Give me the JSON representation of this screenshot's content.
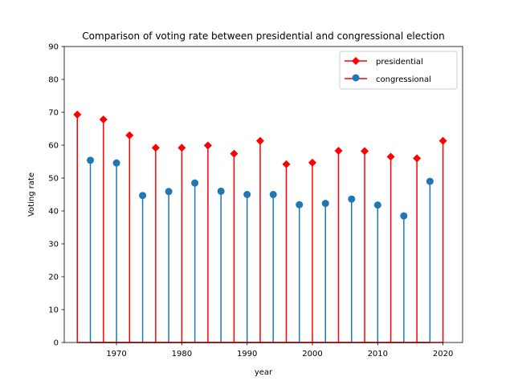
{
  "chart_data": {
    "type": "stem",
    "title": "Comparison of voting rate between presidential and congressional election",
    "xlabel": "year",
    "ylabel": "Voting rate",
    "xlim": [
      1962,
      2023
    ],
    "ylim": [
      0,
      90
    ],
    "xticks": [
      1970,
      1980,
      1990,
      2000,
      2010,
      2020
    ],
    "yticks": [
      0,
      10,
      20,
      30,
      40,
      50,
      60,
      70,
      80,
      90
    ],
    "grid": false,
    "legend_position": "top-right",
    "series": [
      {
        "name": "presidential",
        "color": "#ff0000",
        "marker": "diamond",
        "x": [
          1964,
          1968,
          1972,
          1976,
          1980,
          1984,
          1988,
          1992,
          1996,
          2000,
          2004,
          2008,
          2012,
          2016,
          2020
        ],
        "values": [
          69.3,
          67.8,
          63.0,
          59.2,
          59.2,
          59.9,
          57.4,
          61.3,
          54.2,
          54.7,
          58.3,
          58.2,
          56.5,
          56.0,
          61.3
        ]
      },
      {
        "name": "congressional",
        "color": "#1f77b4",
        "marker": "circle",
        "x": [
          1966,
          1970,
          1974,
          1978,
          1982,
          1986,
          1990,
          1994,
          1998,
          2002,
          2006,
          2010,
          2014,
          2018
        ],
        "values": [
          55.4,
          54.6,
          44.7,
          45.9,
          48.5,
          46.0,
          45.0,
          45.0,
          41.9,
          42.3,
          43.6,
          41.8,
          38.5,
          49.0
        ]
      }
    ]
  }
}
